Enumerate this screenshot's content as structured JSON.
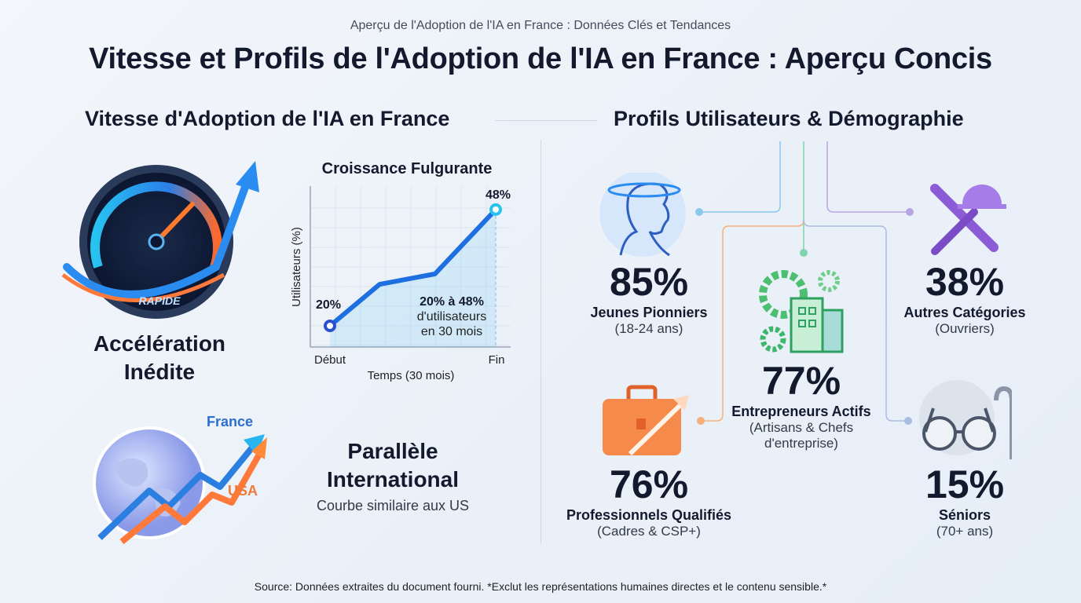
{
  "header": {
    "subtitle": "Aperçu de l'Adoption de l'IA en France : Données Clés et Tendances",
    "title": "Vitesse et Profils de l'Adoption de l'IA en France : Aperçu Concis"
  },
  "left": {
    "section_title": "Vitesse d'Adoption de l'IA en France",
    "speed": {
      "gauge_label": "RAPIDE",
      "title_line1": "Accélération",
      "title_line2": "Inédite"
    },
    "international": {
      "france_label": "France",
      "usa_label": "USA",
      "title_line1": "Parallèle",
      "title_line2": "International",
      "caption": "Courbe similaire aux US"
    }
  },
  "chart_data": {
    "type": "line",
    "title": "Croissance Fulgurante",
    "xlabel": "Temps (30 mois)",
    "ylabel": "Utilisateurs (%)",
    "x_tick_labels": [
      "Début",
      "Fin"
    ],
    "x": [
      0,
      9,
      19,
      30
    ],
    "values": [
      20,
      30,
      32.5,
      48
    ],
    "data_labels": {
      "start": "20%",
      "end": "48%"
    },
    "annotation": {
      "line1": "20% à 48%",
      "line2": "d'utilisateurs",
      "line3": "en 30 mois"
    },
    "grid": true,
    "color": "#1e6fe0"
  },
  "right": {
    "section_title": "Profils Utilisateurs & Démographie",
    "profiles": [
      {
        "value": "85%",
        "label": "Jeunes Pionniers",
        "detail": "(18-24 ans)",
        "icon": "young-person-icon",
        "color": "#4a8fe0"
      },
      {
        "value": "38%",
        "label": "Autres Catégories",
        "detail": "(Ouvriers)",
        "icon": "tools-hardhat-icon",
        "color": "#8b5cd6"
      },
      {
        "value": "77%",
        "label": "Entrepreneurs Actifs",
        "detail": "(Artisans & Chefs",
        "detail2": "d'entreprise)",
        "icon": "gears-building-icon",
        "color": "#3cb86a"
      },
      {
        "value": "76%",
        "label": "Professionnels Qualifiés",
        "detail": "(Cadres & CSP+)",
        "icon": "briefcase-arrow-icon",
        "color": "#f07a3a"
      },
      {
        "value": "15%",
        "label": "Séniors",
        "detail": "(70+ ans)",
        "icon": "glasses-cane-icon",
        "color": "#8a96a8"
      }
    ]
  },
  "footer": {
    "source": "Source: Données extraites du document fourni. *Exclut les représentations humaines directes et le contenu sensible.*"
  }
}
